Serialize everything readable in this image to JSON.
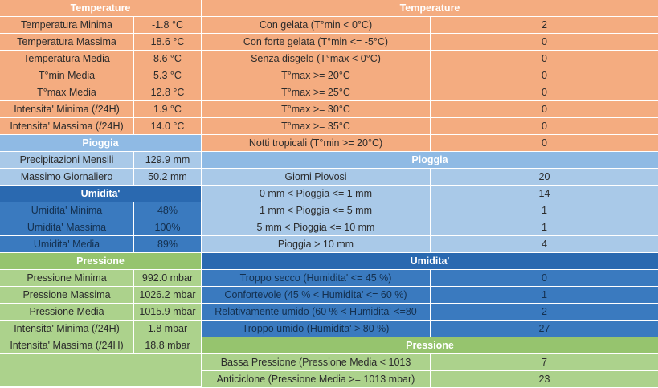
{
  "left": {
    "temperature": {
      "header": "Temperature",
      "rows": [
        {
          "label": "Temperatura Minima",
          "value": "-1.8 °C"
        },
        {
          "label": "Temperatura Massima",
          "value": "18.6 °C"
        },
        {
          "label": "Temperatura Media",
          "value": "8.6 °C"
        },
        {
          "label": "T°min Media",
          "value": "5.3 °C"
        },
        {
          "label": "T°max Media",
          "value": "12.8 °C"
        },
        {
          "label": "Intensita' Minima (/24H)",
          "value": "1.9 °C"
        },
        {
          "label": "Intensita' Massima (/24H)",
          "value": "14.0 °C"
        }
      ]
    },
    "pioggia": {
      "header": "Pioggia",
      "rows": [
        {
          "label": "Precipitazioni Mensili",
          "value": "129.9 mm"
        },
        {
          "label": "Massimo Giornaliero",
          "value": "50.2 mm"
        }
      ]
    },
    "umidita": {
      "header": "Umidita'",
      "rows": [
        {
          "label": "Umidita' Minima",
          "value": "48%"
        },
        {
          "label": "Umidita' Massima",
          "value": "100%"
        },
        {
          "label": "Umidita' Media",
          "value": "89%"
        }
      ]
    },
    "pressione": {
      "header": "Pressione",
      "rows": [
        {
          "label": "Pressione Minima",
          "value": "992.0 mbar"
        },
        {
          "label": "Pressione Massima",
          "value": "1026.2 mbar"
        },
        {
          "label": "Pressione Media",
          "value": "1015.9 mbar"
        },
        {
          "label": "Intensita' Minima (/24H)",
          "value": "1.8 mbar"
        },
        {
          "label": "Intensita' Massima (/24H)",
          "value": "18.8 mbar"
        }
      ]
    }
  },
  "right": {
    "temperature": {
      "header": "Temperature",
      "rows": [
        {
          "label": "Con gelata (T°min < 0°C)",
          "value": "2"
        },
        {
          "label": "Con forte gelata (T°min <= -5°C)",
          "value": "0"
        },
        {
          "label": "Senza disgelo (T°max < 0°C)",
          "value": "0"
        },
        {
          "label": "T°max >= 20°C",
          "value": "0"
        },
        {
          "label": "T°max >= 25°C",
          "value": "0"
        },
        {
          "label": "T°max >= 30°C",
          "value": "0"
        },
        {
          "label": "T°max >= 35°C",
          "value": "0"
        },
        {
          "label": "Notti tropicali (T°min >= 20°C)",
          "value": "0"
        }
      ]
    },
    "pioggia": {
      "header": "Pioggia",
      "rows": [
        {
          "label": "Giorni Piovosi",
          "value": "20"
        },
        {
          "label": "0 mm < Pioggia <= 1 mm",
          "value": "14"
        },
        {
          "label": "1 mm < Pioggia <= 5 mm",
          "value": "1"
        },
        {
          "label": "5 mm < Pioggia <= 10 mm",
          "value": "1"
        },
        {
          "label": "Pioggia > 10 mm",
          "value": "4"
        }
      ]
    },
    "umidita": {
      "header": "Umidita'",
      "rows": [
        {
          "label": "Troppo secco (Humidita' <= 45 %)",
          "value": "0"
        },
        {
          "label": "Confortevole (45 % < Humidita' <= 60 %)",
          "value": "1"
        },
        {
          "label": "Relativamente umido (60 % < Humidita' <=80",
          "value": "2"
        },
        {
          "label": "Troppo umido (Humidita' > 80 %)",
          "value": "27"
        }
      ]
    },
    "pressione": {
      "header": "Pressione",
      "rows": [
        {
          "label": "Bassa Pressione (Pressione Media < 1013",
          "value": "7"
        },
        {
          "label": "Anticiclone (Pressione Media >= 1013 mbar)",
          "value": "23"
        }
      ]
    }
  }
}
